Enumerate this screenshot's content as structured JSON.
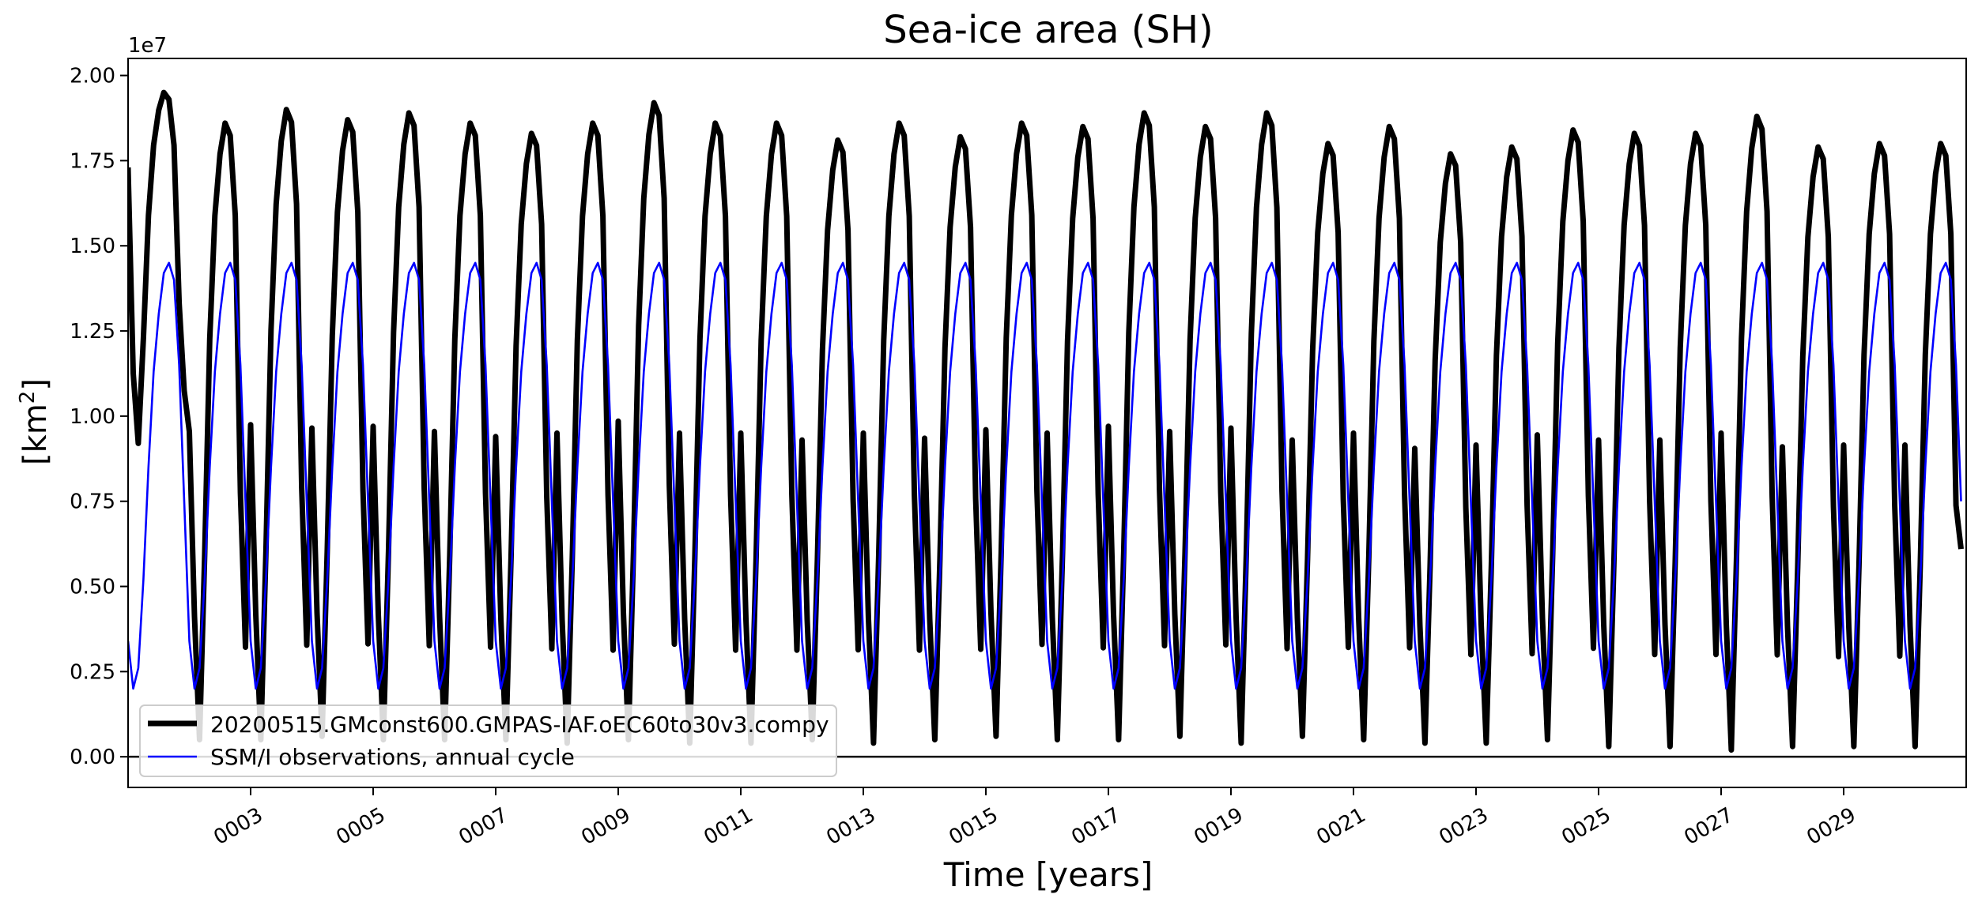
{
  "chart_data": {
    "type": "line",
    "title": "Sea-ice area (SH)",
    "xlabel": "Time [years]",
    "ylabel_main": "[km",
    "ylabel_sup": "2",
    "ylabel_end": "]",
    "y_offset_label": "1e7",
    "xlim": [
      1.0,
      31.0
    ],
    "ylim": [
      -0.09,
      2.05
    ],
    "y_scale": 10000000,
    "grid": false,
    "legend_position": "lower-left",
    "x_ticks": [
      {
        "value": 3,
        "label": "0003"
      },
      {
        "value": 5,
        "label": "0005"
      },
      {
        "value": 7,
        "label": "0007"
      },
      {
        "value": 9,
        "label": "0009"
      },
      {
        "value": 11,
        "label": "0011"
      },
      {
        "value": 13,
        "label": "0013"
      },
      {
        "value": 15,
        "label": "0015"
      },
      {
        "value": 17,
        "label": "0017"
      },
      {
        "value": 19,
        "label": "0019"
      },
      {
        "value": 21,
        "label": "0021"
      },
      {
        "value": 23,
        "label": "0023"
      },
      {
        "value": 25,
        "label": "0025"
      },
      {
        "value": 27,
        "label": "0027"
      },
      {
        "value": 29,
        "label": "0029"
      }
    ],
    "y_ticks": [
      {
        "value": 0.0,
        "label": "0.00"
      },
      {
        "value": 0.25,
        "label": "0.25"
      },
      {
        "value": 0.5,
        "label": "0.50"
      },
      {
        "value": 0.75,
        "label": "0.75"
      },
      {
        "value": 1.0,
        "label": "1.00"
      },
      {
        "value": 1.25,
        "label": "1.25"
      },
      {
        "value": 1.5,
        "label": "1.50"
      },
      {
        "value": 1.75,
        "label": "1.75"
      },
      {
        "value": 2.0,
        "label": "2.00"
      }
    ],
    "reference_line_y": 0.0,
    "series": [
      {
        "name": "20200515.GMconst600.GMPAS-IAF.oEC60to30v3.compy",
        "color": "#000000",
        "style": "thick",
        "sampling": "monthly",
        "year_peaks": [
          1.95,
          1.86,
          1.9,
          1.87,
          1.89,
          1.86,
          1.83,
          1.86,
          1.92,
          1.86,
          1.86,
          1.81,
          1.86,
          1.82,
          1.86,
          1.85,
          1.89,
          1.85,
          1.89,
          1.8,
          1.85,
          1.77,
          1.79,
          1.84,
          1.83,
          1.83,
          1.88,
          1.79,
          1.8,
          1.8
        ],
        "year_troughs": [
          0.92,
          0.05,
          0.05,
          0.06,
          0.05,
          0.05,
          0.05,
          0.04,
          0.05,
          0.04,
          0.04,
          0.05,
          0.04,
          0.05,
          0.06,
          0.05,
          0.05,
          0.06,
          0.04,
          0.06,
          0.05,
          0.04,
          0.04,
          0.05,
          0.03,
          0.03,
          0.02,
          0.03,
          0.03,
          0.03
        ],
        "start_value": 1.73,
        "end_value": 0.61
      },
      {
        "name": "SSM/I observations, annual cycle",
        "color": "#0000ff",
        "style": "thin",
        "sampling": "monthly",
        "annual_cycle": [
          0.34,
          0.2,
          0.26,
          0.52,
          0.85,
          1.13,
          1.3,
          1.42,
          1.45,
          1.4,
          1.15,
          0.75
        ]
      }
    ]
  }
}
